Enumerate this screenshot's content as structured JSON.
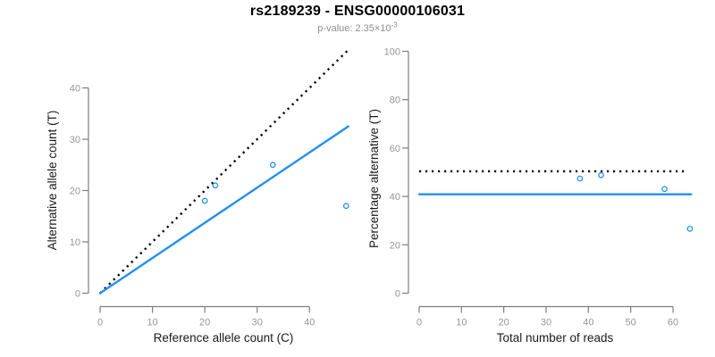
{
  "header": {
    "title": "rs2189239 - ENSG00000106031",
    "subtitle_prefix": "p-value: 2.35×10",
    "subtitle_exponent": "-3"
  },
  "colors": {
    "accent_blue": "#2090F2",
    "dotted_black": "#000000",
    "axis_gray": "#7E7E7E",
    "tick_label_gray": "#979797",
    "label_black": "#1A1A1A",
    "subtitle_gray": "#8F8F8F",
    "background": "#FFFFFF"
  },
  "chart_data": [
    {
      "type": "scatter",
      "panel": "left",
      "xlabel": "Reference allele count (C)",
      "ylabel": "Alternative allele count (T)",
      "xticks": [
        0,
        10,
        20,
        30,
        40
      ],
      "yticks": [
        0,
        10,
        20,
        30,
        40
      ],
      "xlim": [
        0,
        47.5
      ],
      "ylim": [
        0,
        47.5
      ],
      "grid": false,
      "legend": "none",
      "points": [
        [
          20,
          18
        ],
        [
          22,
          21
        ],
        [
          33,
          25
        ],
        [
          47,
          17
        ]
      ],
      "lines": [
        {
          "name": "identity-line",
          "style": "dotted",
          "color_key": "dotted_black",
          "x1": 0,
          "y1": 0,
          "x2": 47.2,
          "y2": 47.2
        },
        {
          "name": "fit-line",
          "style": "solid",
          "color_key": "accent_blue",
          "x1": 0,
          "y1": 0,
          "x2": 47.4,
          "y2": 32.5
        }
      ]
    },
    {
      "type": "scatter",
      "panel": "right",
      "xlabel": "Total number of reads",
      "ylabel": "Percentage alternative (T)",
      "xticks": [
        0,
        10,
        20,
        30,
        40,
        50,
        60
      ],
      "yticks": [
        0,
        20,
        40,
        60,
        80,
        100
      ],
      "xlim": [
        0,
        64.5
      ],
      "ylim": [
        0,
        104
      ],
      "grid": false,
      "legend": "none",
      "points": [
        [
          38,
          47.4
        ],
        [
          43,
          48.8
        ],
        [
          58,
          43.1
        ],
        [
          64,
          26.6
        ]
      ],
      "lines": [
        {
          "name": "expected-50pct-line",
          "style": "dotted",
          "color_key": "dotted_black",
          "x1": 0,
          "y1": 50.4,
          "x2": 63.2,
          "y2": 50.4
        },
        {
          "name": "fit-41pct-line",
          "style": "solid",
          "color_key": "accent_blue",
          "x1": 0,
          "y1": 40.9,
          "x2": 64.3,
          "y2": 40.9
        }
      ]
    }
  ]
}
